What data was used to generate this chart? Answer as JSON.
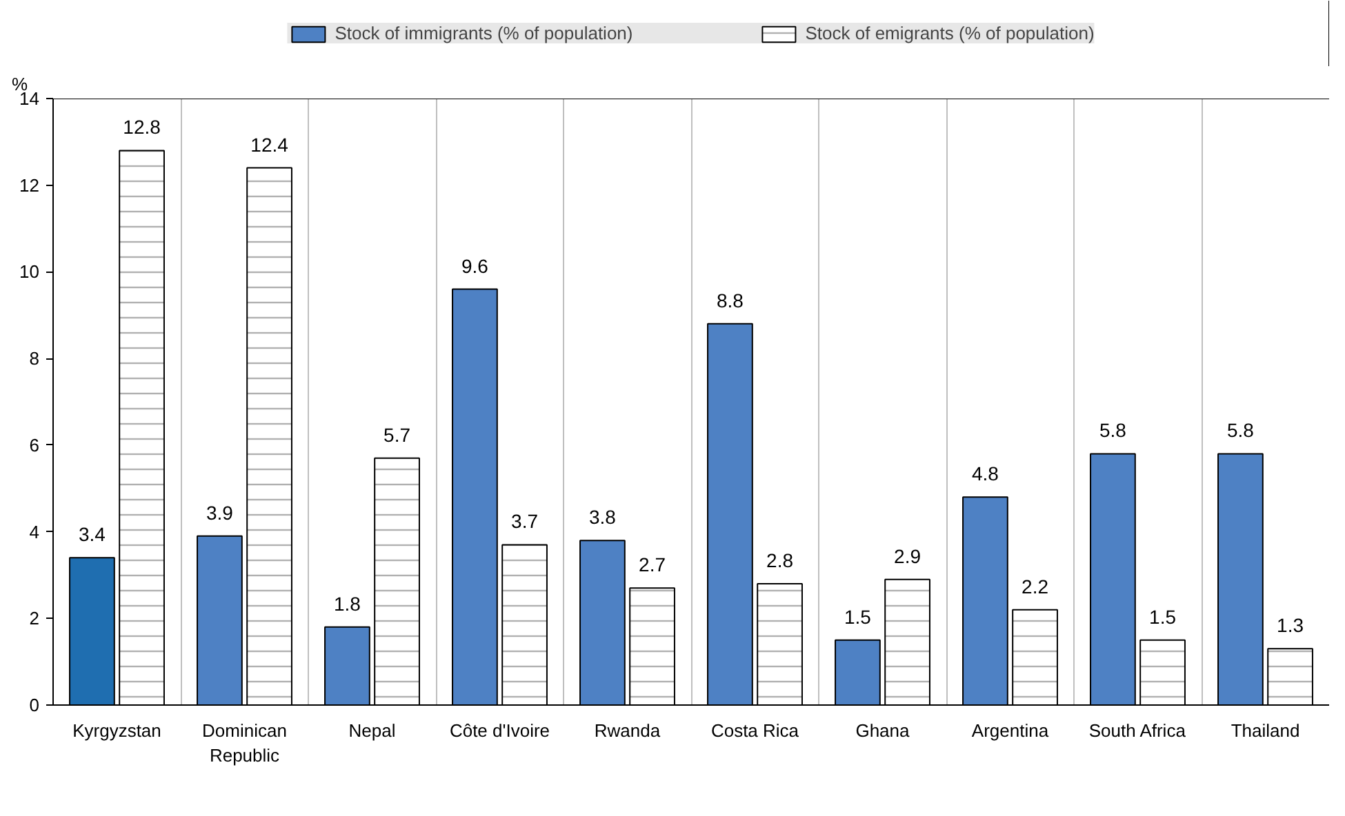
{
  "chart_data": {
    "type": "bar",
    "ylabel": "%",
    "categories": [
      "Kyrgyzstan",
      "Dominican Republic",
      "Nepal",
      "Côte d'Ivoire",
      "Rwanda",
      "Costa Rica",
      "Ghana",
      "Argentina",
      "South Africa",
      "Thailand"
    ],
    "series": [
      {
        "name": "Stock of immigrants (% of population)",
        "color": "#4e81c4",
        "colors": [
          "#1f6eb0",
          "#4e81c4",
          "#4e81c4",
          "#4e81c4",
          "#4e81c4",
          "#4e81c4",
          "#4e81c4",
          "#4e81c4",
          "#4e81c4",
          "#4e81c4"
        ],
        "values": [
          3.4,
          3.9,
          1.8,
          9.6,
          3.8,
          8.8,
          1.5,
          4.8,
          5.8,
          5.8
        ]
      },
      {
        "name": "Stock of emigrants (% of population)",
        "color": "#ffffff",
        "values": [
          12.8,
          12.4,
          5.7,
          3.7,
          2.7,
          2.8,
          2.9,
          2.2,
          1.5,
          1.3
        ]
      }
    ],
    "ylim": [
      0,
      14
    ],
    "yticks": [
      0,
      2,
      4,
      6,
      8,
      10,
      12,
      14
    ],
    "data_labels": true,
    "grid": "x",
    "legend": "top"
  }
}
